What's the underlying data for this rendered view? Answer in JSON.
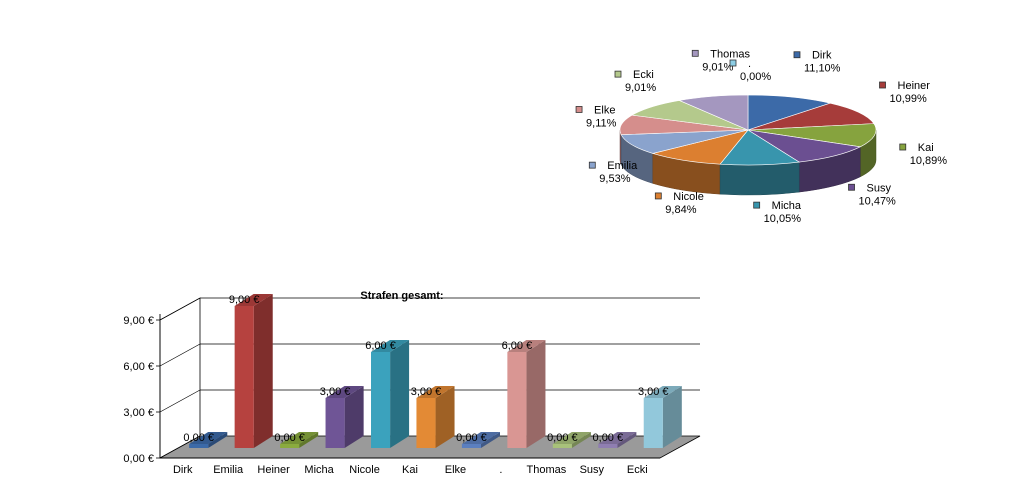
{
  "chart_data": [
    {
      "type": "pie",
      "title": "",
      "slices": [
        {
          "label": "Dirk",
          "percent_label": "11,10%",
          "value": 11.1,
          "color": "#3c6aa8"
        },
        {
          "label": "Heiner",
          "percent_label": "10,99%",
          "value": 10.99,
          "color": "#a63c3a"
        },
        {
          "label": "Kai",
          "percent_label": "10,89%",
          "value": 10.89,
          "color": "#86a33e"
        },
        {
          "label": "Susy",
          "percent_label": "10,47%",
          "value": 10.47,
          "color": "#6b4f91"
        },
        {
          "label": "Micha",
          "percent_label": "10,05%",
          "value": 10.05,
          "color": "#3895ad"
        },
        {
          "label": "Nicole",
          "percent_label": "9,84%",
          "value": 9.84,
          "color": "#dc7f30"
        },
        {
          "label": "Emilia",
          "percent_label": "9,53%",
          "value": 9.53,
          "color": "#8aa3cd"
        },
        {
          "label": "Elke",
          "percent_label": "9,11%",
          "value": 9.11,
          "color": "#d58e8c"
        },
        {
          "label": "Ecki",
          "percent_label": "9,01%",
          "value": 9.01,
          "color": "#b4c98c"
        },
        {
          "label": "Thomas",
          "percent_label": "9,01%",
          "value": 9.01,
          "color": "#a497bf"
        },
        {
          "label": ".",
          "percent_label": "0,00%",
          "value": 0.0,
          "color": "#8ccde4"
        }
      ]
    },
    {
      "type": "bar",
      "title": "Strafen gesamt:",
      "xlabel": "",
      "ylabel": "",
      "ylim": [
        0,
        9
      ],
      "yticks": [
        "0,00 €",
        "3,00 €",
        "6,00 €",
        "9,00 €"
      ],
      "ytick_values": [
        0,
        3,
        6,
        9
      ],
      "grid": true,
      "categories": [
        "Dirk",
        "Emilia",
        "Heiner",
        "Micha",
        "Nicole",
        "Kai",
        "Elke",
        ".",
        "Thomas",
        "Susy",
        "Ecki"
      ],
      "values": [
        0,
        9,
        0,
        3,
        6,
        3,
        0,
        6,
        0,
        0,
        3
      ],
      "value_labels": [
        "0,00 €",
        "9,00 €",
        "0,00 €",
        "3,00 €",
        "6,00 €",
        "3,00 €",
        "0,00 €",
        "6,00 €",
        "0,00 €",
        "0,00 €",
        "3,00 €"
      ],
      "colors": [
        "#3c6aa8",
        "#b6423f",
        "#8aab3e",
        "#6f5596",
        "#3ba2bd",
        "#e38a35",
        "#5b7fbf",
        "#d99693",
        "#a8c17a",
        "#8f7eb1",
        "#92c8db"
      ]
    }
  ]
}
